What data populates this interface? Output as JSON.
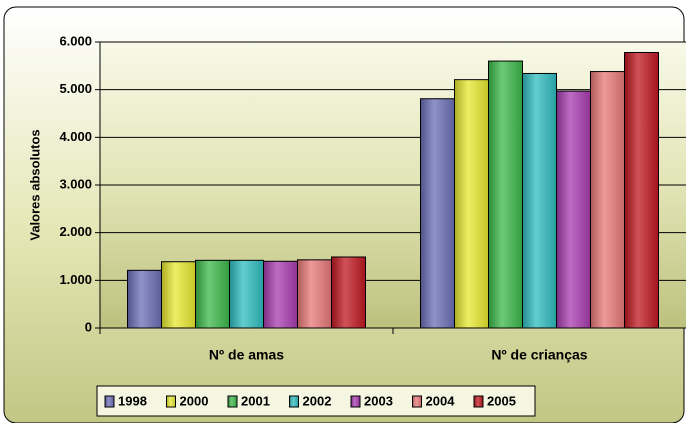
{
  "chart_data": {
    "type": "bar",
    "title": "",
    "xlabel": "",
    "ylabel": "Valores absolutos",
    "ylim": [
      0,
      6000
    ],
    "yticks": [
      "0",
      "1.000",
      "2.000",
      "3.000",
      "4.000",
      "5.000",
      "6.000"
    ],
    "categories": [
      "Nº de amas",
      "Nº de crianças"
    ],
    "series": [
      {
        "name": "1998",
        "values": [
          1210,
          4810
        ],
        "color": "#6b6fb5"
      },
      {
        "name": "2000",
        "values": [
          1390,
          5210
        ],
        "color": "#e8e830"
      },
      {
        "name": "2001",
        "values": [
          1420,
          5600
        ],
        "color": "#3cb84a"
      },
      {
        "name": "2002",
        "values": [
          1420,
          5340
        ],
        "color": "#2fbcbf"
      },
      {
        "name": "2003",
        "values": [
          1400,
          4970
        ],
        "color": "#a83cb0"
      },
      {
        "name": "2004",
        "values": [
          1430,
          5380
        ],
        "color": "#e87878"
      },
      {
        "name": "2005",
        "values": [
          1490,
          5780
        ],
        "color": "#c01820"
      }
    ],
    "grid": true,
    "legend_position": "bottom"
  }
}
